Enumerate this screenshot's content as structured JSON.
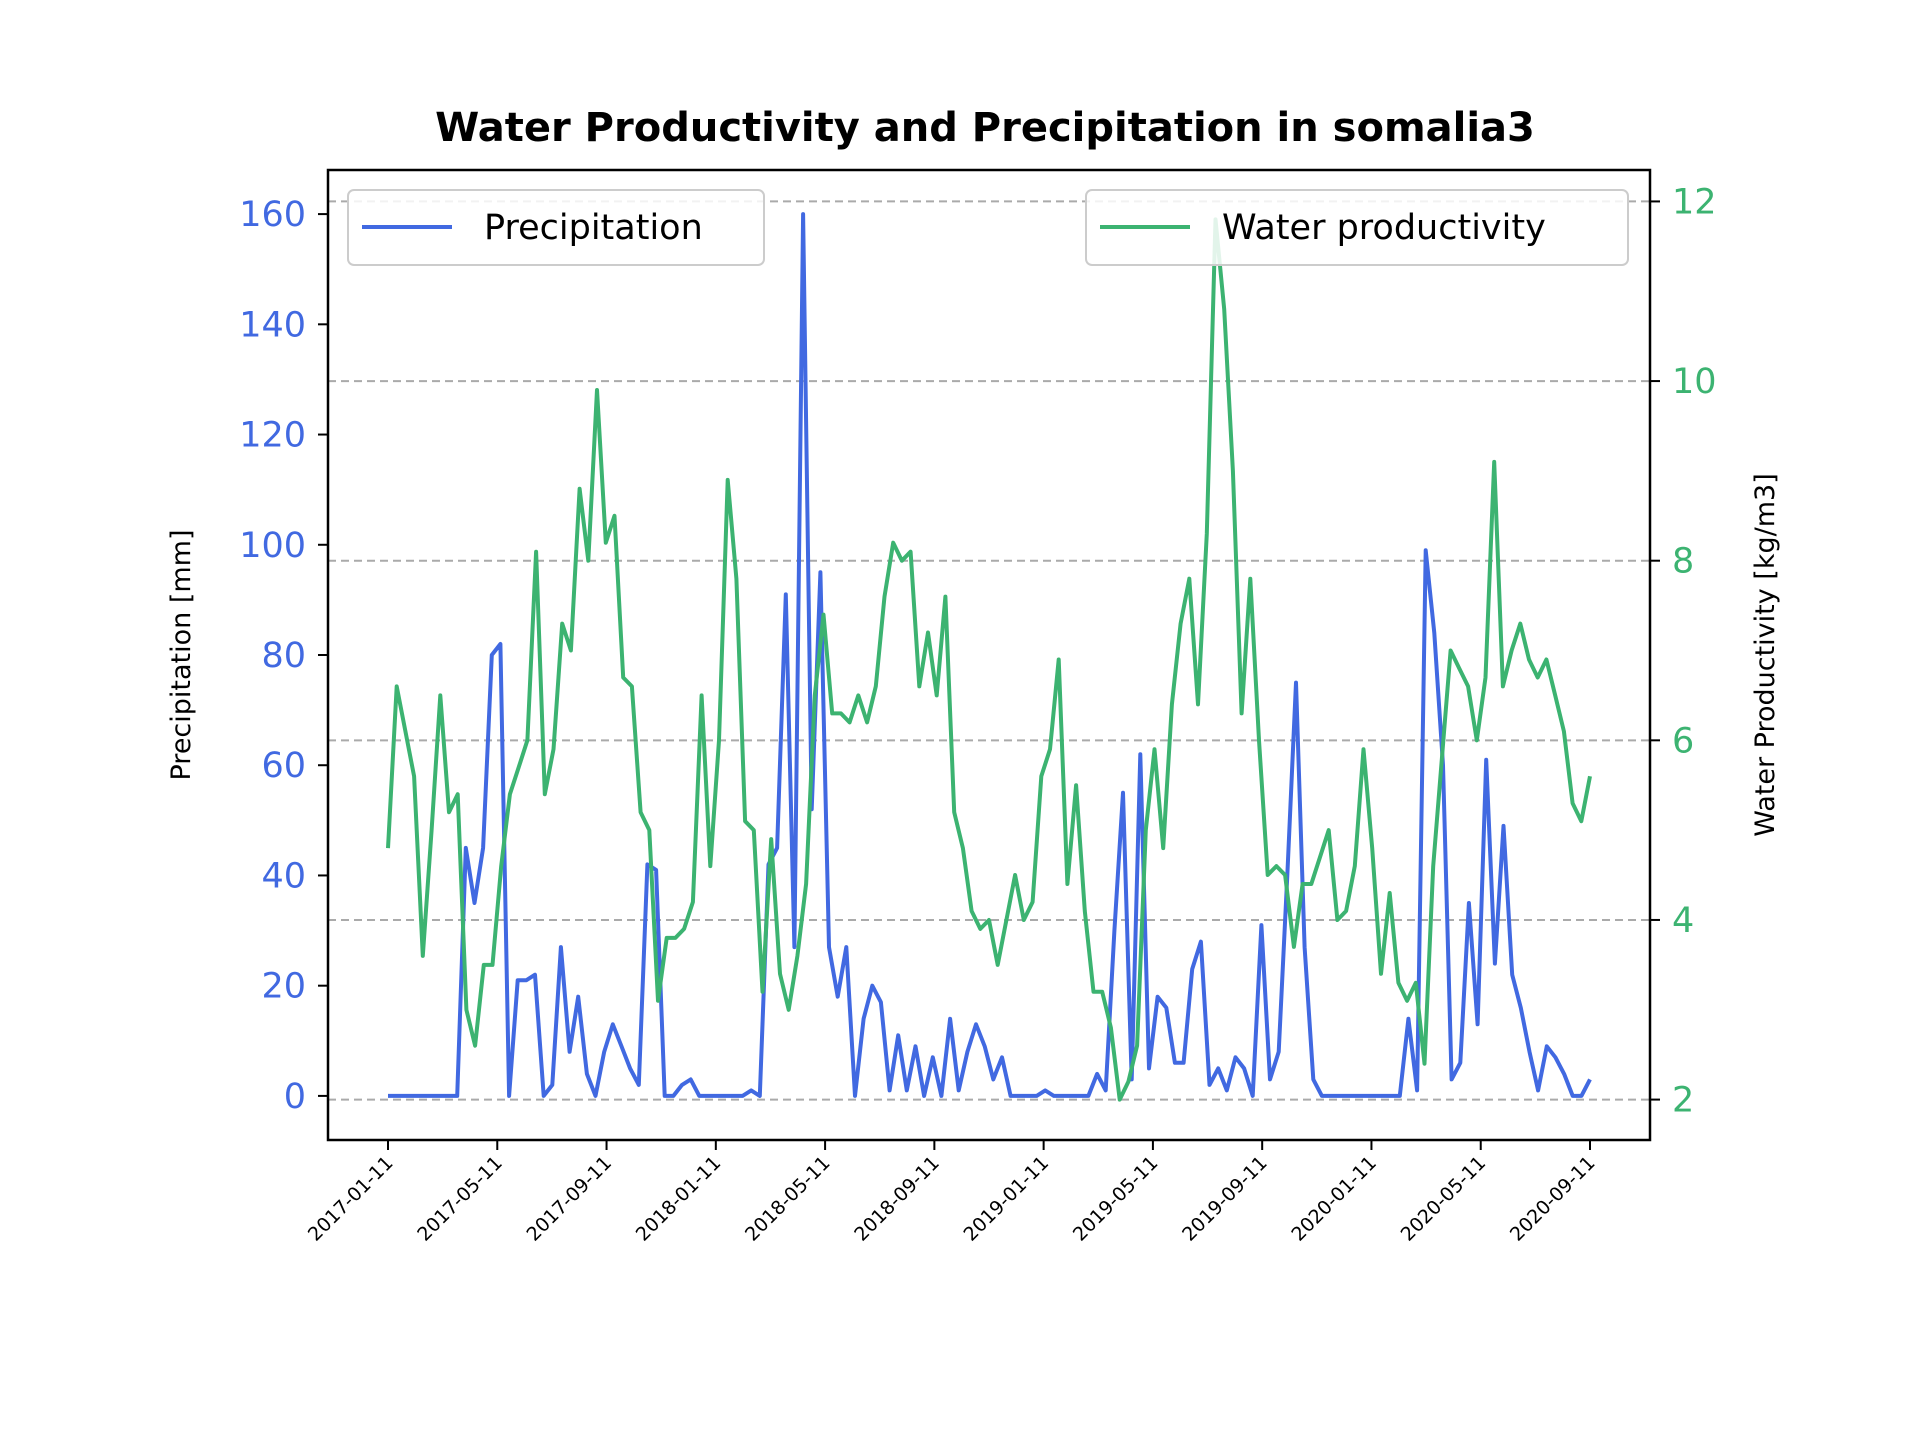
{
  "chart_data": {
    "type": "line",
    "title": "Water Productivity and Precipitation in somalia3",
    "xlabel": "",
    "ylabel": "Precipitation [mm]",
    "ylabel_right": "Water Productivity [kg/m3]",
    "x_ticks": [
      "2017-01-11",
      "2017-05-11",
      "2017-09-11",
      "2018-01-11",
      "2018-05-11",
      "2018-09-11",
      "2019-01-11",
      "2019-05-11",
      "2019-09-11",
      "2020-01-11",
      "2020-05-11",
      "2020-09-11"
    ],
    "y_ticks_left": [
      "0",
      "20",
      "40",
      "60",
      "80",
      "100",
      "120",
      "140",
      "160"
    ],
    "y_ticks_right": [
      "2",
      "4",
      "6",
      "8",
      "10",
      "12"
    ],
    "ylim_left": [
      -8,
      168
    ],
    "ylim_right": [
      1.55,
      12.35
    ],
    "grid": "horizontal dashed",
    "legend_left": "top-left",
    "legend_right": "top-right",
    "colors": {
      "precipitation": "#4169e1",
      "water_productivity": "#3cb371",
      "grid": "#aaaaaa"
    },
    "series": [
      {
        "name": "Precipitation",
        "axis": "left",
        "values": [
          0,
          0,
          0,
          0,
          0,
          0,
          0,
          0,
          0,
          45,
          35,
          45,
          80,
          82,
          0,
          21,
          21,
          22,
          0,
          2,
          27,
          8,
          18,
          4,
          0,
          8,
          13,
          9,
          5,
          2,
          42,
          41,
          0,
          0,
          2,
          3,
          0,
          0,
          0,
          0,
          0,
          0,
          1,
          0,
          42,
          45,
          91,
          27,
          160,
          52,
          95,
          27,
          18,
          27,
          0,
          14,
          20,
          17,
          1,
          11,
          1,
          9,
          0,
          7,
          0,
          14,
          1,
          8,
          13,
          9,
          3,
          7,
          0,
          0,
          0,
          0,
          1,
          0,
          0,
          0,
          0,
          0,
          4,
          1,
          30,
          55,
          3,
          62,
          5,
          18,
          16,
          6,
          6,
          23,
          28,
          2,
          5,
          1,
          7,
          5,
          0,
          31,
          3,
          8,
          40,
          75,
          27,
          3,
          0,
          0,
          0,
          0,
          0,
          0,
          0,
          0,
          0,
          0,
          14,
          1,
          99,
          84,
          60,
          3,
          6,
          35,
          13,
          61,
          24,
          49,
          22,
          16,
          8,
          1,
          9,
          7,
          4,
          0,
          0,
          3
        ]
      },
      {
        "name": "Water productivity",
        "axis": "right",
        "values": [
          4.8,
          6.6,
          6.1,
          5.6,
          3.6,
          5.0,
          6.5,
          5.2,
          5.4,
          3.0,
          2.6,
          3.5,
          3.5,
          4.6,
          5.4,
          5.7,
          6.0,
          8.1,
          5.4,
          5.9,
          7.3,
          7.0,
          8.8,
          8.0,
          9.9,
          8.2,
          8.5,
          6.7,
          6.6,
          5.2,
          5.0,
          3.1,
          3.8,
          3.8,
          3.9,
          4.2,
          6.5,
          4.6,
          6.0,
          8.9,
          7.8,
          5.1,
          5.0,
          3.2,
          4.9,
          3.4,
          3.0,
          3.6,
          4.4,
          6.5,
          7.4,
          6.3,
          6.3,
          6.2,
          6.5,
          6.2,
          6.6,
          7.6,
          8.2,
          8.0,
          8.1,
          6.6,
          7.2,
          6.5,
          7.6,
          5.2,
          4.8,
          4.1,
          3.9,
          4.0,
          3.5,
          4.0,
          4.5,
          4.0,
          4.2,
          5.6,
          5.9,
          6.9,
          4.4,
          5.5,
          4.1,
          3.2,
          3.2,
          2.8,
          2.0,
          2.2,
          2.6,
          5.0,
          5.9,
          4.8,
          6.4,
          7.3,
          7.8,
          6.4,
          8.3,
          11.8,
          10.8,
          9.0,
          6.3,
          7.8,
          6.0,
          4.5,
          4.6,
          4.5,
          3.7,
          4.4,
          4.4,
          4.7,
          5.0,
          4.0,
          4.1,
          4.6,
          5.9,
          4.8,
          3.4,
          4.3,
          3.3,
          3.1,
          3.3,
          2.4,
          4.6,
          5.8,
          7.0,
          6.8,
          6.6,
          6.0,
          6.7,
          9.1,
          6.6,
          7.0,
          7.3,
          6.9,
          6.7,
          6.9,
          6.5,
          6.1,
          5.3,
          5.1,
          5.6
        ]
      }
    ]
  }
}
